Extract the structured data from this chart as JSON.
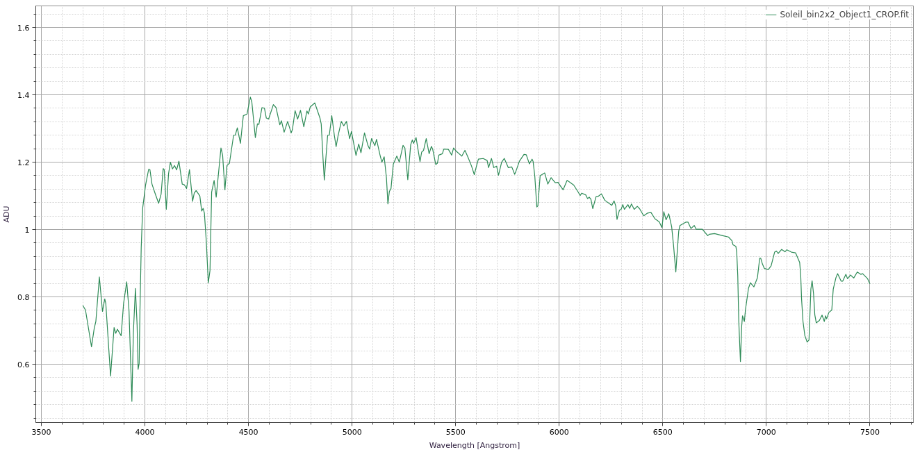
{
  "chart_data": {
    "type": "line",
    "xlabel": "Wavelength [Angstrom]",
    "ylabel": "ADU",
    "x": [
      3700,
      3713,
      3742,
      3755,
      3763,
      3780,
      3795,
      3806,
      3811,
      3834,
      3851,
      3859,
      3867,
      3885,
      3897,
      3912,
      3923,
      3937,
      3944,
      3954,
      3962,
      3967,
      3972,
      3976,
      3982,
      3989,
      4003,
      4018,
      4024,
      4034,
      4047,
      4066,
      4078,
      4088,
      4093,
      4103,
      4114,
      4123,
      4133,
      4143,
      4153,
      4164,
      4180,
      4190,
      4201,
      4215,
      4230,
      4238,
      4247,
      4265,
      4274,
      4281,
      4287,
      4296,
      4306,
      4314,
      4322,
      4334,
      4344,
      4354,
      4367,
      4375,
      4386,
      4396,
      4408,
      4428,
      4436,
      4446,
      4461,
      4475,
      4493,
      4509,
      4516,
      4533,
      4543,
      4550,
      4565,
      4577,
      4586,
      4597,
      4620,
      4633,
      4651,
      4659,
      4672,
      4689,
      4706,
      4712,
      4725,
      4737,
      4751,
      4767,
      4782,
      4789,
      4798,
      4820,
      4845,
      4851,
      4860,
      4866,
      4873,
      4882,
      4890,
      4902,
      4915,
      4923,
      4932,
      4948,
      4960,
      4973,
      4988,
      4997,
      5019,
      5032,
      5043,
      5060,
      5077,
      5085,
      5094,
      5110,
      5118,
      5135,
      5144,
      5155,
      5166,
      5173,
      5180,
      5188,
      5199,
      5216,
      5228,
      5246,
      5255,
      5269,
      5283,
      5291,
      5297,
      5309,
      5328,
      5336,
      5345,
      5358,
      5372,
      5383,
      5389,
      5404,
      5412,
      5419,
      5436,
      5443,
      5465,
      5481,
      5490,
      5504,
      5530,
      5545,
      5560,
      5577,
      5590,
      5603,
      5610,
      5633,
      5652,
      5659,
      5673,
      5684,
      5698,
      5707,
      5722,
      5735,
      5754,
      5771,
      5785,
      5791,
      5808,
      5830,
      5841,
      5856,
      5869,
      5874,
      5882,
      5892,
      5897,
      5908,
      5930,
      5945,
      5961,
      5981,
      5994,
      6019,
      6038,
      6048,
      6070,
      6092,
      6101,
      6109,
      6128,
      6137,
      6145,
      6153,
      6162,
      6178,
      6187,
      6204,
      6220,
      6254,
      6265,
      6273,
      6279,
      6291,
      6299,
      6307,
      6315,
      6332,
      6340,
      6349,
      6362,
      6377,
      6388,
      6408,
      6427,
      6443,
      6462,
      6483,
      6496,
      6505,
      6516,
      6529,
      6543,
      6552,
      6563,
      6572,
      6577,
      6583,
      6611,
      6622,
      6636,
      6652,
      6661,
      6691,
      6717,
      6725,
      6750,
      6789,
      6817,
      6834,
      6839,
      6853,
      6857,
      6862,
      6867,
      6875,
      6881,
      6885,
      6894,
      6899,
      6914,
      6923,
      6940,
      6957,
      6968,
      6973,
      6981,
      6990,
      7009,
      7023,
      7040,
      7049,
      7057,
      7074,
      7090,
      7099,
      7121,
      7141,
      7152,
      7161,
      7166,
      7170,
      7177,
      7186,
      7197,
      7206,
      7210,
      7215,
      7221,
      7228,
      7234,
      7241,
      7256,
      7269,
      7280,
      7286,
      7291,
      7302,
      7316,
      7323,
      7336,
      7344,
      7361,
      7369,
      7384,
      7392,
      7406,
      7422,
      7439,
      7456,
      7465,
      7489,
      7500
    ],
    "series": [
      {
        "name": "Soleil_bin2x2_Object1_CROP.fit",
        "color": "#2e8b57",
        "values": [
          0.775,
          0.761,
          0.652,
          0.706,
          0.727,
          0.859,
          0.757,
          0.794,
          0.781,
          0.565,
          0.709,
          0.692,
          0.704,
          0.685,
          0.781,
          0.845,
          0.761,
          0.49,
          0.692,
          0.825,
          0.72,
          0.585,
          0.603,
          0.761,
          0.946,
          1.063,
          1.132,
          1.179,
          1.178,
          1.135,
          1.111,
          1.078,
          1.105,
          1.181,
          1.178,
          1.06,
          1.166,
          1.2,
          1.18,
          1.19,
          1.177,
          1.203,
          1.135,
          1.133,
          1.122,
          1.178,
          1.084,
          1.108,
          1.116,
          1.1,
          1.055,
          1.063,
          1.049,
          0.967,
          0.842,
          0.878,
          1.111,
          1.146,
          1.096,
          1.16,
          1.242,
          1.221,
          1.118,
          1.19,
          1.197,
          1.28,
          1.28,
          1.302,
          1.256,
          1.338,
          1.343,
          1.393,
          1.379,
          1.273,
          1.314,
          1.312,
          1.362,
          1.36,
          1.331,
          1.328,
          1.371,
          1.362,
          1.311,
          1.323,
          1.289,
          1.321,
          1.287,
          1.297,
          1.353,
          1.328,
          1.354,
          1.305,
          1.352,
          1.343,
          1.364,
          1.376,
          1.331,
          1.314,
          1.208,
          1.147,
          1.208,
          1.28,
          1.28,
          1.338,
          1.277,
          1.246,
          1.277,
          1.321,
          1.308,
          1.321,
          1.27,
          1.291,
          1.22,
          1.254,
          1.228,
          1.287,
          1.249,
          1.239,
          1.27,
          1.249,
          1.268,
          1.221,
          1.2,
          1.216,
          1.153,
          1.076,
          1.113,
          1.122,
          1.194,
          1.218,
          1.2,
          1.25,
          1.242,
          1.148,
          1.252,
          1.266,
          1.256,
          1.273,
          1.202,
          1.23,
          1.235,
          1.27,
          1.225,
          1.247,
          1.239,
          1.193,
          1.197,
          1.221,
          1.225,
          1.239,
          1.238,
          1.221,
          1.242,
          1.232,
          1.218,
          1.235,
          1.214,
          1.188,
          1.163,
          1.194,
          1.209,
          1.211,
          1.205,
          1.184,
          1.211,
          1.184,
          1.188,
          1.161,
          1.2,
          1.211,
          1.184,
          1.186,
          1.164,
          1.173,
          1.203,
          1.223,
          1.222,
          1.195,
          1.209,
          1.202,
          1.16,
          1.067,
          1.07,
          1.16,
          1.168,
          1.135,
          1.154,
          1.139,
          1.14,
          1.118,
          1.146,
          1.142,
          1.132,
          1.111,
          1.101,
          1.108,
          1.103,
          1.092,
          1.096,
          1.09,
          1.062,
          1.098,
          1.098,
          1.106,
          1.087,
          1.072,
          1.085,
          1.07,
          1.03,
          1.058,
          1.06,
          1.074,
          1.06,
          1.074,
          1.063,
          1.076,
          1.06,
          1.069,
          1.062,
          1.041,
          1.049,
          1.051,
          1.032,
          1.023,
          1.006,
          1.053,
          1.029,
          1.047,
          1.008,
          0.953,
          0.874,
          0.953,
          0.995,
          1.012,
          1.022,
          1.022,
          1.003,
          1.012,
          1.001,
          1.001,
          0.982,
          0.986,
          0.988,
          0.982,
          0.978,
          0.967,
          0.955,
          0.95,
          0.933,
          0.864,
          0.727,
          0.608,
          0.713,
          0.744,
          0.727,
          0.761,
          0.826,
          0.842,
          0.83,
          0.857,
          0.915,
          0.915,
          0.898,
          0.885,
          0.881,
          0.892,
          0.933,
          0.936,
          0.929,
          0.941,
          0.934,
          0.94,
          0.933,
          0.931,
          0.915,
          0.902,
          0.864,
          0.795,
          0.727,
          0.685,
          0.666,
          0.672,
          0.74,
          0.823,
          0.848,
          0.809,
          0.747,
          0.723,
          0.73,
          0.746,
          0.727,
          0.744,
          0.735,
          0.754,
          0.761,
          0.823,
          0.857,
          0.869,
          0.847,
          0.847,
          0.867,
          0.854,
          0.865,
          0.856,
          0.874,
          0.867,
          0.869,
          0.854,
          0.839
        ]
      }
    ],
    "xlim": [
      3473,
      7710
    ],
    "ylim": [
      0.427,
      1.664
    ],
    "xticks": [
      3500,
      {
        "value": 3600,
        "label": null
      },
      {
        "value": 3700,
        "label": null
      },
      {
        "value": 3800,
        "label": null
      },
      {
        "value": 3900,
        "label": null
      },
      4000,
      {
        "value": 4100,
        "label": null
      },
      {
        "value": 4200,
        "label": null
      },
      {
        "value": 4300,
        "label": null
      },
      {
        "value": 4400,
        "label": null
      },
      4500,
      {
        "value": 4600,
        "label": null
      },
      {
        "value": 4700,
        "label": null
      },
      {
        "value": 4800,
        "label": null
      },
      {
        "value": 4900,
        "label": null
      },
      5000,
      {
        "value": 5100,
        "label": null
      },
      {
        "value": 5200,
        "label": null
      },
      {
        "value": 5300,
        "label": null
      },
      {
        "value": 5400,
        "label": null
      },
      5500,
      {
        "value": 5600,
        "label": null
      },
      {
        "value": 5700,
        "label": null
      },
      {
        "value": 5800,
        "label": null
      },
      {
        "value": 5900,
        "label": null
      },
      6000,
      {
        "value": 6100,
        "label": null
      },
      {
        "value": 6200,
        "label": null
      },
      {
        "value": 6300,
        "label": null
      },
      {
        "value": 6400,
        "label": null
      },
      6500,
      {
        "value": 6600,
        "label": null
      },
      {
        "value": 6700,
        "label": null
      },
      {
        "value": 6800,
        "label": null
      },
      {
        "value": 6900,
        "label": null
      },
      7000,
      {
        "value": 7100,
        "label": null
      },
      {
        "value": 7200,
        "label": null
      },
      {
        "value": 7300,
        "label": null
      },
      {
        "value": 7400,
        "label": null
      },
      7500,
      {
        "value": 7600,
        "label": null
      },
      {
        "value": 7700,
        "label": null
      }
    ],
    "yticks": [
      {
        "value": 0.44,
        "label": null
      },
      {
        "value": 0.48,
        "label": null
      },
      {
        "value": 0.52,
        "label": null
      },
      {
        "value": 0.56,
        "label": null
      },
      0.6,
      {
        "value": 0.64,
        "label": null
      },
      {
        "value": 0.68,
        "label": null
      },
      {
        "value": 0.72,
        "label": null
      },
      {
        "value": 0.76,
        "label": null
      },
      0.8,
      {
        "value": 0.84,
        "label": null
      },
      {
        "value": 0.88,
        "label": null
      },
      {
        "value": 0.92,
        "label": null
      },
      {
        "value": 0.96,
        "label": null
      },
      1,
      {
        "value": 1.04,
        "label": null
      },
      {
        "value": 1.08,
        "label": null
      },
      {
        "value": 1.12,
        "label": null
      },
      {
        "value": 1.16,
        "label": null
      },
      1.2,
      {
        "value": 1.24,
        "label": null
      },
      {
        "value": 1.28,
        "label": null
      },
      {
        "value": 1.32,
        "label": null
      },
      {
        "value": 1.36,
        "label": null
      },
      1.4,
      {
        "value": 1.44,
        "label": null
      },
      {
        "value": 1.48,
        "label": null
      },
      {
        "value": 1.52,
        "label": null
      },
      {
        "value": 1.56,
        "label": null
      },
      1.6,
      {
        "value": 1.64,
        "label": null
      }
    ],
    "grid": true,
    "legend": "top right"
  }
}
